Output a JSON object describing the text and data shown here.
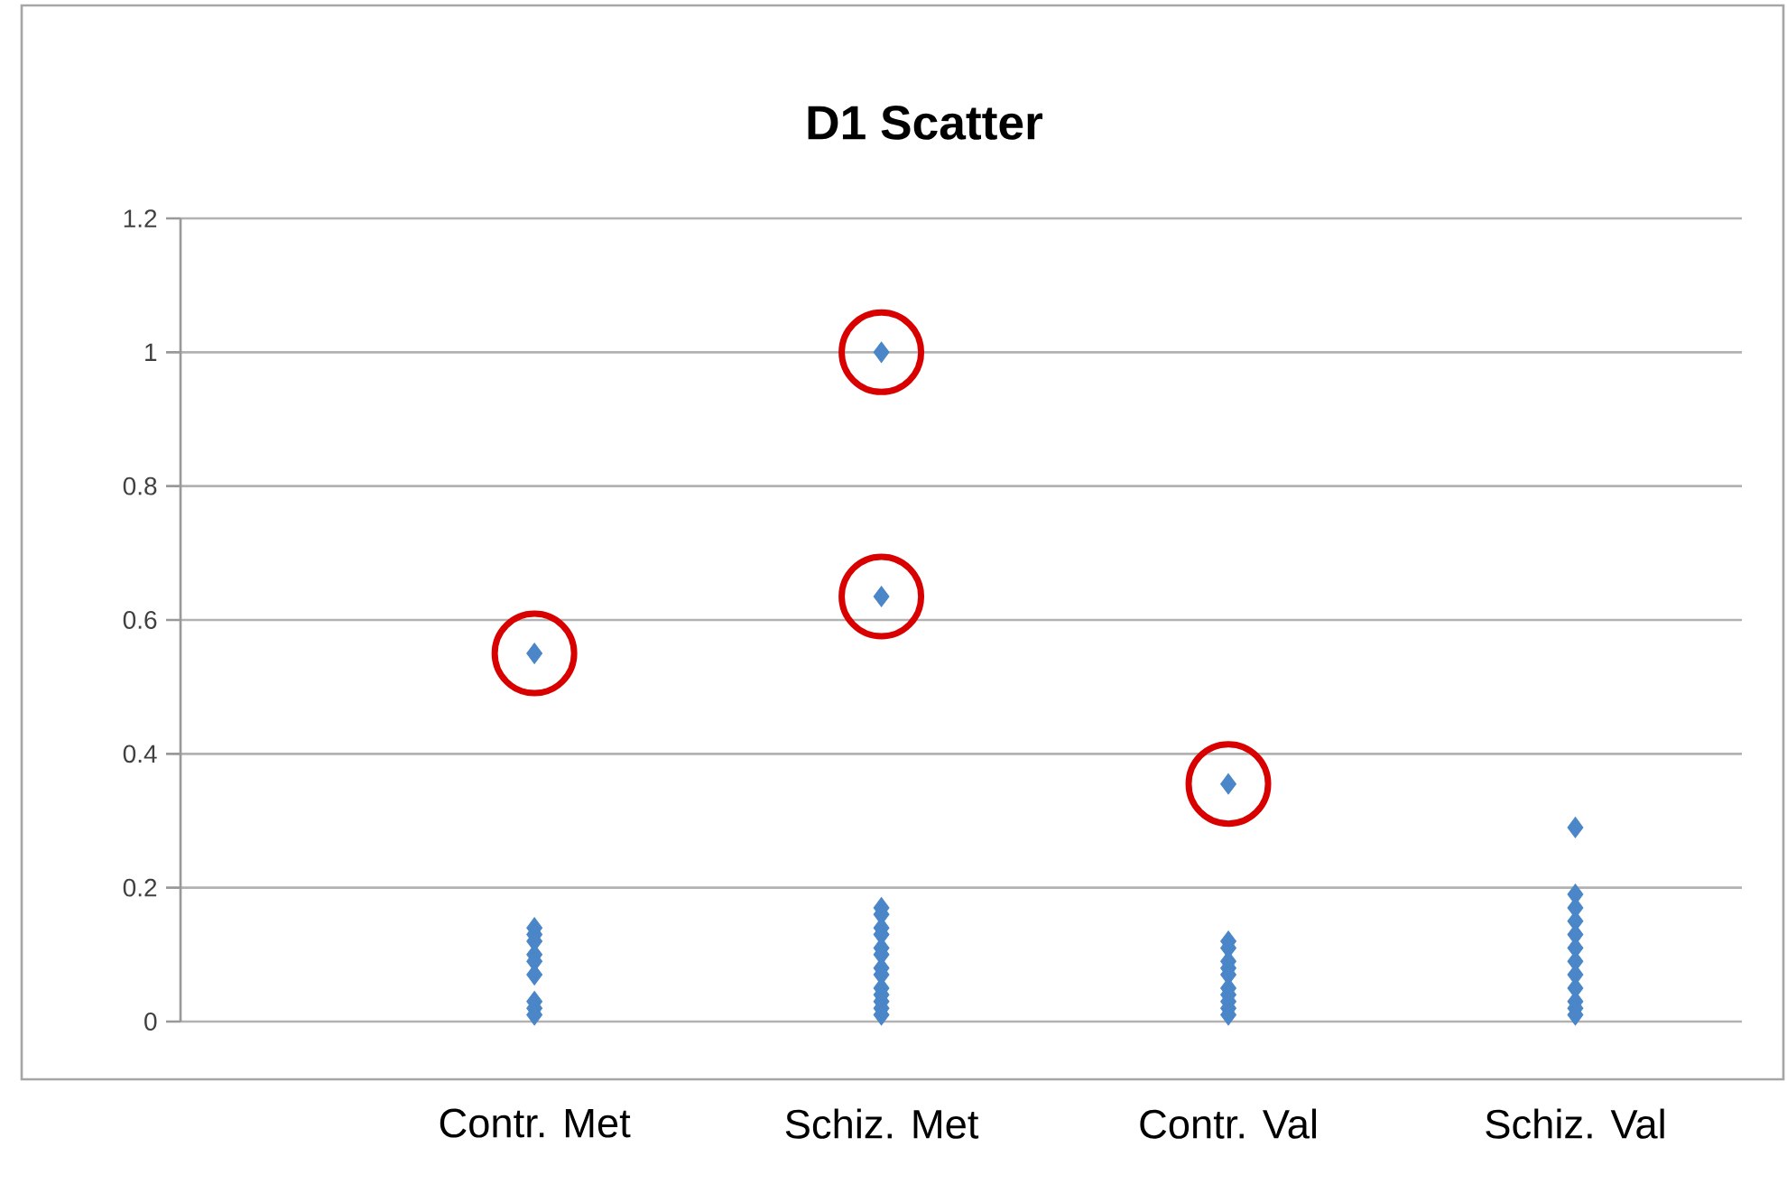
{
  "chart_data": {
    "type": "scatter",
    "title": "D1 Scatter",
    "categories": [
      "Contr. Met",
      "Schiz. Met",
      "Contr. Val",
      "Schiz. Val"
    ],
    "series": [
      {
        "color": "#4a86c8",
        "x": [
          "Contr. Met",
          "Contr. Met",
          "Contr. Met",
          "Contr. Met",
          "Contr. Met",
          "Contr. Met",
          "Contr. Met",
          "Contr. Met",
          "Contr. Met",
          "Contr. Met",
          "Schiz. Met",
          "Schiz. Met",
          "Schiz. Met",
          "Schiz. Met",
          "Schiz. Met",
          "Schiz. Met",
          "Schiz. Met",
          "Schiz. Met",
          "Schiz. Met",
          "Schiz. Met",
          "Schiz. Met",
          "Schiz. Met",
          "Schiz. Met",
          "Schiz. Met",
          "Schiz. Met",
          "Contr. Val",
          "Contr. Val",
          "Contr. Val",
          "Contr. Val",
          "Contr. Val",
          "Contr. Val",
          "Contr. Val",
          "Contr. Val",
          "Contr. Val",
          "Contr. Val",
          "Contr. Val",
          "Schiz. Val",
          "Schiz. Val",
          "Schiz. Val",
          "Schiz. Val",
          "Schiz. Val",
          "Schiz. Val",
          "Schiz. Val",
          "Schiz. Val",
          "Schiz. Val",
          "Schiz. Val",
          "Schiz. Val",
          "Schiz. Val"
        ],
        "values": [
          0.55,
          0.14,
          0.13,
          0.12,
          0.1,
          0.09,
          0.07,
          0.03,
          0.02,
          0.01,
          1.0,
          0.635,
          0.17,
          0.16,
          0.14,
          0.13,
          0.11,
          0.1,
          0.08,
          0.07,
          0.05,
          0.04,
          0.03,
          0.02,
          0.01,
          0.355,
          0.12,
          0.11,
          0.09,
          0.08,
          0.07,
          0.05,
          0.04,
          0.03,
          0.02,
          0.01,
          0.29,
          0.19,
          0.17,
          0.15,
          0.13,
          0.11,
          0.09,
          0.07,
          0.05,
          0.03,
          0.02,
          0.01
        ]
      }
    ],
    "ylim": [
      0,
      1.2
    ],
    "yticks": [
      0,
      0.2,
      0.4,
      0.6,
      0.8,
      1,
      1.2
    ],
    "grid": "y",
    "marker": "diamond"
  }
}
